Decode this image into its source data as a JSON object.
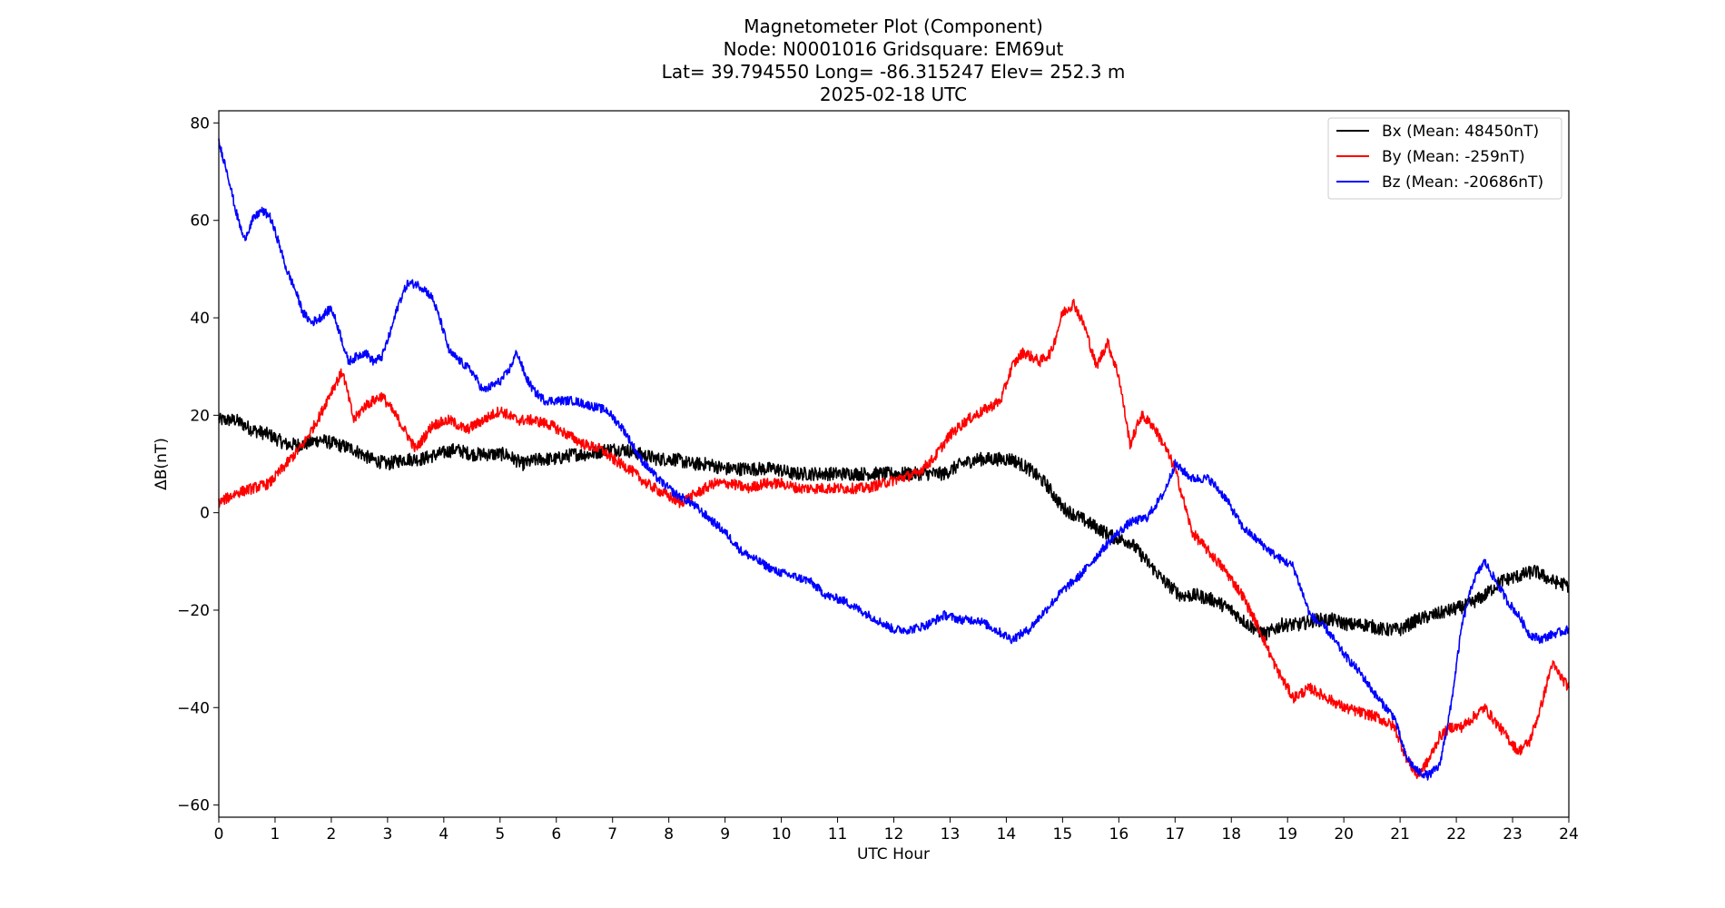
{
  "chart_data": {
    "type": "line",
    "title_lines": [
      "Magnetometer Plot (Component)",
      "Node:  N0001016     Gridsquare:  EM69ut",
      "Lat= 39.794550    Long= -86.315247    Elev= 252.3 m",
      "2025-02-18  UTC"
    ],
    "xlabel": "UTC Hour",
    "ylabel": "ΔB(nT)",
    "xlim": [
      0,
      24
    ],
    "ylim": [
      -62.5,
      82.5
    ],
    "xticks": [
      0,
      1,
      2,
      3,
      4,
      5,
      6,
      7,
      8,
      9,
      10,
      11,
      12,
      13,
      14,
      15,
      16,
      17,
      18,
      19,
      20,
      21,
      22,
      23,
      24
    ],
    "yticks": [
      -60,
      -40,
      -20,
      0,
      20,
      40,
      60,
      80
    ],
    "ytick_labels": [
      "−60",
      "−40",
      "−20",
      "0",
      "20",
      "40",
      "60",
      "80"
    ],
    "grid": false,
    "legend_position": "top-right",
    "series": [
      {
        "name": "Bx (Mean: 48450nT)",
        "color": "#000000",
        "noise": 1.4,
        "x": [
          0,
          0.3,
          0.6,
          0.9,
          1.2,
          1.5,
          1.8,
          2.1,
          2.4,
          2.7,
          3.0,
          3.3,
          3.6,
          3.9,
          4.2,
          4.5,
          4.8,
          5.1,
          5.4,
          5.7,
          6.0,
          6.3,
          6.6,
          6.9,
          7.2,
          7.5,
          7.8,
          8.1,
          8.4,
          8.7,
          9.0,
          9.3,
          9.6,
          9.9,
          10.2,
          10.5,
          10.8,
          11.1,
          11.4,
          11.7,
          12.0,
          12.3,
          12.6,
          12.9,
          13.2,
          13.5,
          13.8,
          14.1,
          14.4,
          14.7,
          15.0,
          15.3,
          15.6,
          15.9,
          16.2,
          16.5,
          16.8,
          17.1,
          17.4,
          17.7,
          18.0,
          18.3,
          18.6,
          18.9,
          19.2,
          19.5,
          19.8,
          20.1,
          20.4,
          20.7,
          21.0,
          21.3,
          21.6,
          21.9,
          22.2,
          22.5,
          22.8,
          23.1,
          23.4,
          23.7,
          24.0
        ],
        "y": [
          19,
          19,
          17,
          16,
          14,
          14,
          15,
          14,
          13,
          11,
          10,
          11,
          11,
          12,
          13,
          12,
          12,
          12,
          10,
          11,
          11,
          12,
          12,
          13,
          13,
          12,
          11,
          11,
          10,
          10,
          9,
          9,
          9,
          9,
          8,
          8,
          8,
          8,
          8,
          8,
          8,
          8,
          8,
          8,
          10,
          11,
          11,
          11,
          9,
          6,
          1,
          -1,
          -3,
          -5,
          -6,
          -10,
          -14,
          -17,
          -17,
          -18,
          -20,
          -23,
          -25,
          -23,
          -23,
          -22,
          -22,
          -23,
          -23,
          -24,
          -24,
          -22,
          -21,
          -20,
          -19,
          -17,
          -14,
          -13,
          -12,
          -14,
          -15
        ]
      },
      {
        "name": "By (Mean: -259nT)",
        "color": "#ff0000",
        "noise": 1.1,
        "x": [
          0,
          0.3,
          0.6,
          0.9,
          1.2,
          1.5,
          1.8,
          2.0,
          2.2,
          2.4,
          2.6,
          2.9,
          3.2,
          3.5,
          3.8,
          4.1,
          4.4,
          4.7,
          5.0,
          5.3,
          5.6,
          5.9,
          6.2,
          6.5,
          6.8,
          7.0,
          7.3,
          7.6,
          7.9,
          8.2,
          8.5,
          8.8,
          9.1,
          9.4,
          9.7,
          10.0,
          10.3,
          10.6,
          10.9,
          11.2,
          11.5,
          11.8,
          12.1,
          12.4,
          12.7,
          13.0,
          13.3,
          13.6,
          13.9,
          14.1,
          14.3,
          14.6,
          14.8,
          15.0,
          15.2,
          15.4,
          15.6,
          15.8,
          16.0,
          16.2,
          16.4,
          16.6,
          16.8,
          17.0,
          17.3,
          17.6,
          17.9,
          18.2,
          18.5,
          18.8,
          19.1,
          19.4,
          19.7,
          20.0,
          20.3,
          20.6,
          20.9,
          21.1,
          21.3,
          21.5,
          21.7,
          21.9,
          22.1,
          22.3,
          22.5,
          22.7,
          22.9,
          23.1,
          23.3,
          23.5,
          23.7,
          24.0
        ],
        "y": [
          2,
          4,
          5,
          6,
          10,
          14,
          20,
          25,
          29,
          19,
          22,
          24,
          19,
          13,
          18,
          19,
          17,
          19,
          21,
          19,
          19,
          18,
          16,
          14,
          13,
          11,
          9,
          6,
          4,
          2,
          4,
          6,
          6,
          5,
          6,
          6,
          5,
          5,
          5,
          5,
          5,
          6,
          7,
          8,
          11,
          16,
          19,
          21,
          23,
          30,
          33,
          31,
          33,
          41,
          43,
          38,
          30,
          35,
          28,
          14,
          20,
          18,
          14,
          9,
          -4,
          -8,
          -12,
          -17,
          -24,
          -32,
          -38,
          -36,
          -38,
          -40,
          -41,
          -42,
          -44,
          -50,
          -54,
          -51,
          -46,
          -44,
          -44,
          -42,
          -40,
          -43,
          -46,
          -49,
          -47,
          -40,
          -31,
          -36
        ]
      },
      {
        "name": "Bz (Mean: -20686nT)",
        "color": "#0000ff",
        "noise": 0.9,
        "x": [
          0,
          0.15,
          0.3,
          0.45,
          0.6,
          0.75,
          0.9,
          1.05,
          1.2,
          1.35,
          1.5,
          1.65,
          1.8,
          2.0,
          2.15,
          2.3,
          2.45,
          2.6,
          2.75,
          2.9,
          3.05,
          3.2,
          3.35,
          3.5,
          3.65,
          3.8,
          3.95,
          4.1,
          4.3,
          4.5,
          4.7,
          4.85,
          5.0,
          5.15,
          5.3,
          5.45,
          5.6,
          5.8,
          6.0,
          6.3,
          6.6,
          6.9,
          7.2,
          7.5,
          7.8,
          8.1,
          8.4,
          8.7,
          9.0,
          9.3,
          9.6,
          9.9,
          10.2,
          10.5,
          10.8,
          11.1,
          11.4,
          11.7,
          12.0,
          12.3,
          12.6,
          12.9,
          13.2,
          13.5,
          13.8,
          14.1,
          14.4,
          14.7,
          15.0,
          15.3,
          15.6,
          15.9,
          16.2,
          16.5,
          16.8,
          17.0,
          17.3,
          17.6,
          17.9,
          18.2,
          18.5,
          18.8,
          19.1,
          19.4,
          19.7,
          20.0,
          20.3,
          20.6,
          20.9,
          21.1,
          21.3,
          21.5,
          21.7,
          21.9,
          22.1,
          22.3,
          22.5,
          22.7,
          22.9,
          23.1,
          23.3,
          23.5,
          23.7,
          24.0
        ],
        "y": [
          76,
          70,
          62,
          56,
          60,
          62,
          61,
          56,
          50,
          46,
          41,
          39,
          40,
          42,
          37,
          31,
          32,
          33,
          31,
          32,
          37,
          43,
          47,
          47,
          46,
          44,
          39,
          33,
          31,
          29,
          25,
          26,
          27,
          29,
          33,
          28,
          25,
          23,
          23,
          23,
          22,
          21,
          17,
          11,
          7,
          4,
          2,
          -1,
          -4,
          -8,
          -10,
          -12,
          -13,
          -14,
          -17,
          -18,
          -20,
          -22,
          -24,
          -24,
          -23,
          -21,
          -22,
          -22,
          -24,
          -26,
          -24,
          -20,
          -16,
          -13,
          -9,
          -5,
          -2,
          -1,
          4,
          10,
          7,
          7,
          3,
          -3,
          -6,
          -9,
          -11,
          -21,
          -24,
          -29,
          -33,
          -38,
          -42,
          -50,
          -53,
          -54,
          -52,
          -40,
          -23,
          -14,
          -10,
          -14,
          -18,
          -21,
          -25,
          -26,
          -25,
          -24
        ]
      }
    ]
  }
}
